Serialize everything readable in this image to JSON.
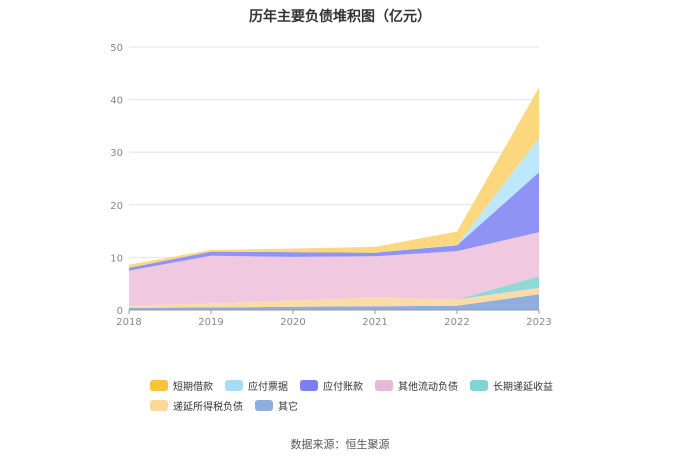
{
  "chart_data": {
    "type": "area",
    "stacked": true,
    "title": "历年主要负债堆积图（亿元）",
    "categories": [
      "2018",
      "2019",
      "2020",
      "2021",
      "2022",
      "2023"
    ],
    "ylim": [
      0,
      50
    ],
    "yticks": [
      0,
      10,
      20,
      30,
      40,
      50
    ],
    "grid": true,
    "legend_position": "bottom",
    "series": [
      {
        "name": "其它",
        "color": "#8eaedf",
        "values": [
          0.4,
          0.5,
          0.6,
          0.7,
          0.8,
          3.0
        ]
      },
      {
        "name": "递延所得税负债",
        "color": "#fbdca8",
        "values": [
          0.4,
          0.8,
          1.2,
          1.7,
          1.2,
          1.2
        ]
      },
      {
        "name": "长期递延收益",
        "color": "#8fd9d9",
        "values": [
          0.0,
          0.0,
          0.0,
          0.0,
          0.0,
          2.2
        ]
      },
      {
        "name": "其他流动负债",
        "color": "#f0c8e0",
        "values": [
          6.7,
          9.0,
          8.3,
          7.8,
          9.2,
          8.4
        ]
      },
      {
        "name": "应付账款",
        "color": "#8f94f4",
        "values": [
          0.5,
          0.8,
          0.9,
          0.7,
          1.1,
          11.4
        ]
      },
      {
        "name": "应付票据",
        "color": "#bde7fa",
        "values": [
          0.0,
          0.0,
          0.0,
          0.0,
          0.1,
          6.5
        ]
      },
      {
        "name": "短期借款",
        "color": "#fdd77e",
        "values": [
          0.6,
          0.3,
          0.7,
          1.1,
          2.5,
          9.6
        ]
      }
    ]
  },
  "legend": [
    {
      "label": "短期借款",
      "color": "#f9c23c"
    },
    {
      "label": "应付票据",
      "color": "#a6dcf7"
    },
    {
      "label": "应付账款",
      "color": "#7b7ff2"
    },
    {
      "label": "其他流动负债",
      "color": "#e9b8d8"
    },
    {
      "label": "长期递延收益",
      "color": "#7fd4d4"
    },
    {
      "label": "递延所得税负债",
      "color": "#fbd79a"
    },
    {
      "label": "其它",
      "color": "#8eaedf"
    }
  ],
  "source": "数据来源：恒生聚源"
}
